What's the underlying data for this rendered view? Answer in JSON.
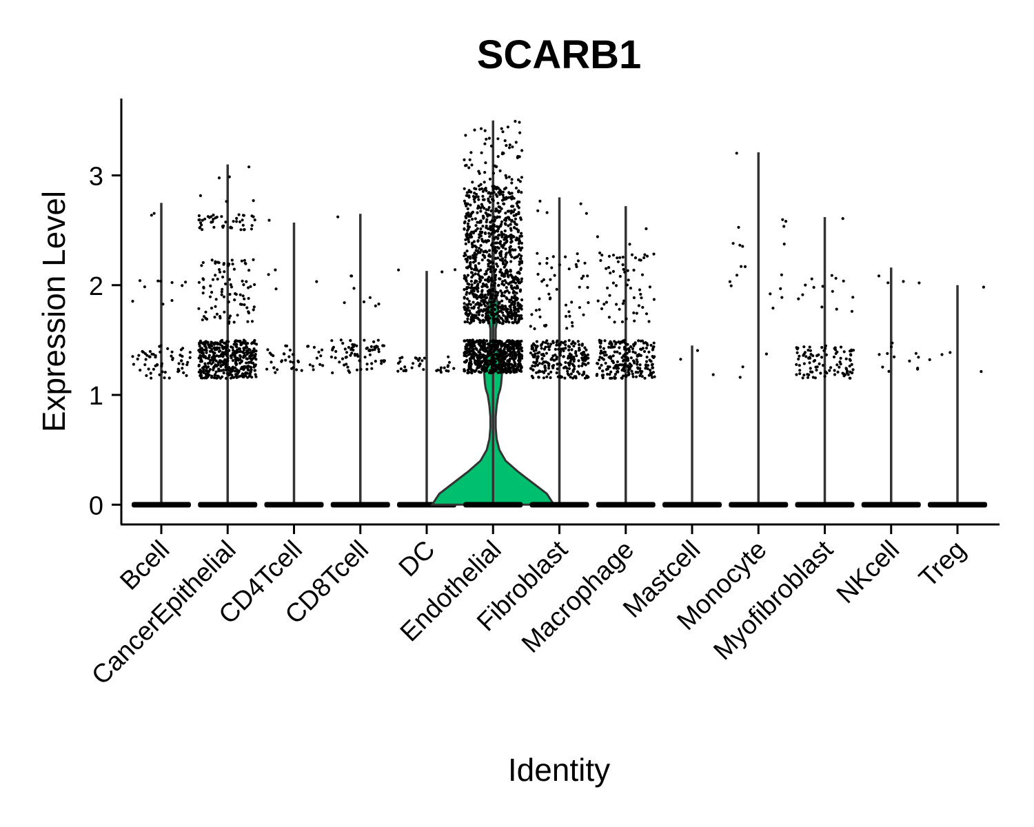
{
  "chart_data": {
    "type": "violin",
    "title": "SCARB1",
    "xlabel": "Identity",
    "ylabel": "Expression Level",
    "ylim": [
      -0.18,
      3.7
    ],
    "yticks": [
      0,
      1,
      2,
      3
    ],
    "categories": [
      "Bcell",
      "CancerEpithelial",
      "CD4Tcell",
      "CD8Tcell",
      "DC",
      "Endothelial",
      "Fibroblast",
      "Macrophage",
      "Mastcell",
      "Monocyte",
      "Myofibroblast",
      "NKcell",
      "Treg"
    ],
    "max_values": [
      2.75,
      3.1,
      2.57,
      2.65,
      2.13,
      3.5,
      2.8,
      2.72,
      1.45,
      3.21,
      2.62,
      2.16,
      2.0
    ],
    "highlight_category": "Endothelial",
    "colors": {
      "violin_fill": "#00BF6F",
      "violin_stroke": "#333333",
      "points": "#000000",
      "axis": "#000000"
    },
    "point_clusters": [
      [
        [
          1.15,
          1.45,
          60
        ],
        [
          1.7,
          2.2,
          10
        ],
        [
          2.6,
          2.75,
          2
        ]
      ],
      [
        [
          1.15,
          1.5,
          420
        ],
        [
          1.65,
          2.25,
          90
        ],
        [
          2.5,
          2.65,
          45
        ],
        [
          2.75,
          3.1,
          6
        ]
      ],
      [
        [
          1.2,
          1.45,
          40
        ],
        [
          1.95,
          2.15,
          4
        ],
        [
          2.55,
          2.6,
          1
        ]
      ],
      [
        [
          1.2,
          1.5,
          70
        ],
        [
          1.75,
          2.1,
          8
        ],
        [
          2.6,
          2.65,
          1
        ]
      ],
      [
        [
          1.2,
          1.35,
          35
        ],
        [
          2.1,
          2.15,
          3
        ]
      ],
      [
        [
          1.2,
          1.5,
          600
        ],
        [
          1.65,
          1.9,
          280
        ],
        [
          1.9,
          2.5,
          450
        ],
        [
          2.5,
          2.9,
          220
        ],
        [
          2.9,
          3.5,
          60
        ]
      ],
      [
        [
          1.15,
          1.5,
          220
        ],
        [
          1.6,
          2.3,
          50
        ],
        [
          2.55,
          2.8,
          5
        ]
      ],
      [
        [
          1.15,
          1.5,
          220
        ],
        [
          1.65,
          2.3,
          60
        ],
        [
          2.35,
          2.72,
          3
        ]
      ],
      [
        [
          1.15,
          1.45,
          3
        ]
      ],
      [
        [
          1.15,
          1.5,
          3
        ],
        [
          1.75,
          2.2,
          10
        ],
        [
          2.35,
          2.65,
          8
        ],
        [
          3.2,
          3.21,
          1
        ]
      ],
      [
        [
          1.15,
          1.45,
          100
        ],
        [
          1.75,
          2.15,
          14
        ],
        [
          2.6,
          2.62,
          1
        ]
      ],
      [
        [
          1.2,
          1.5,
          12
        ],
        [
          2.0,
          2.16,
          4
        ]
      ],
      [
        [
          1.2,
          1.45,
          4
        ],
        [
          1.95,
          2.0,
          1
        ]
      ]
    ],
    "endothelial_density": [
      [
        0,
        0.68
      ],
      [
        0.1,
        0.6
      ],
      [
        0.2,
        0.44
      ],
      [
        0.3,
        0.28
      ],
      [
        0.4,
        0.14
      ],
      [
        0.5,
        0.07
      ],
      [
        0.6,
        0.04
      ],
      [
        0.7,
        0.03
      ],
      [
        0.8,
        0.03
      ],
      [
        0.9,
        0.04
      ],
      [
        1.0,
        0.06
      ],
      [
        1.05,
        0.08
      ],
      [
        1.1,
        0.09
      ],
      [
        1.2,
        0.1
      ],
      [
        1.25,
        0.1
      ],
      [
        1.3,
        0.09
      ],
      [
        1.4,
        0.05
      ],
      [
        1.5,
        0.03
      ],
      [
        1.6,
        0.03
      ],
      [
        1.7,
        0.05
      ],
      [
        1.8,
        0.06
      ],
      [
        1.85,
        0.05
      ],
      [
        1.9,
        0.03
      ],
      [
        2.0,
        0.02
      ],
      [
        2.1,
        0.01
      ],
      [
        2.2,
        0.008
      ],
      [
        2.5,
        0.005
      ],
      [
        3.0,
        0.002
      ],
      [
        3.5,
        0.0
      ]
    ]
  }
}
